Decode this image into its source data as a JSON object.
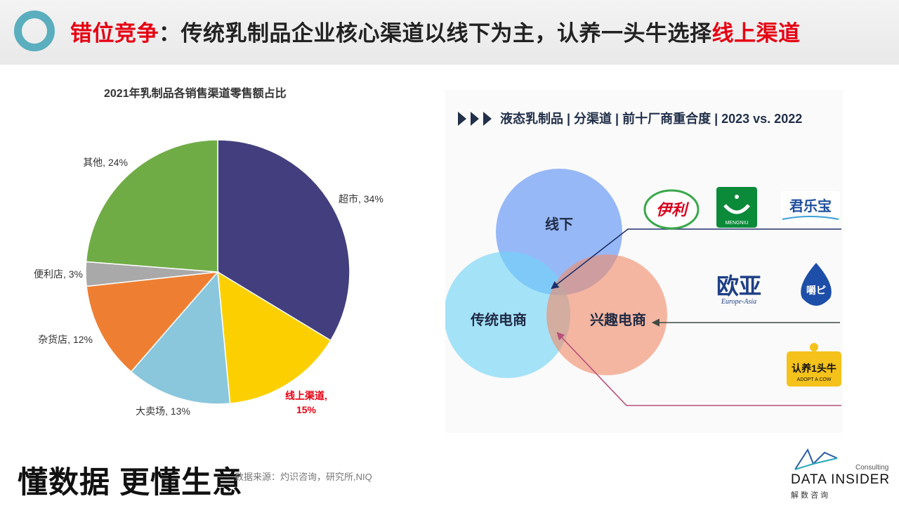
{
  "header": {
    "title_prefix": "错位竞争",
    "title_colon": "：",
    "title_main": "传统乳制品企业核心渠道以线下为主，认养一头牛选择",
    "title_highlight": "线上渠道"
  },
  "chart_data": [
    {
      "type": "pie",
      "title": "2021年乳制品各销售渠道零售额占比",
      "slices": [
        {
          "label": "超市",
          "value": 34,
          "display": "超市, 34%",
          "color": "#433f7e"
        },
        {
          "label": "线上渠道",
          "value": 15,
          "display_line1": "线上渠道,",
          "display_line2": "15%",
          "color": "#fcd000",
          "highlight": true,
          "label_color": "#e60012"
        },
        {
          "label": "大卖场",
          "value": 13,
          "display": "大卖场, 13%",
          "color": "#8ac7dc"
        },
        {
          "label": "杂货店",
          "value": 12,
          "display": "杂货店, 12%",
          "color": "#ee7f32"
        },
        {
          "label": "便利店",
          "value": 3,
          "display": "便利店, 3%",
          "color": "#a9a9a9"
        },
        {
          "label": "其他",
          "value": 24,
          "display": "其他, 24%",
          "color": "#70ac46"
        }
      ]
    }
  ],
  "venn": {
    "heading": "液态乳制品 | 分渠道 | 前十厂商重合度 | 2023 vs. 2022",
    "circles": [
      {
        "label": "线下",
        "color": "#5a8ff5"
      },
      {
        "label": "传统电商",
        "color": "#6fd3f7"
      },
      {
        "label": "兴趣电商",
        "color": "#f18c6b"
      }
    ],
    "logos": [
      {
        "text": "伊利",
        "color": "#d6001c"
      },
      {
        "text": "MENGNIU",
        "color": "#0b8a3a"
      },
      {
        "text": "君乐宝",
        "color": "#1f4f9c"
      },
      {
        "text": "欧亚",
        "color": "#1f3f86",
        "sub": "Europe-Asia"
      },
      {
        "text": "嚼ピ",
        "color": "#1d4ea8"
      },
      {
        "text": "认养1头牛",
        "sub": "ADOPT A COW",
        "color": "#f4c21a"
      }
    ]
  },
  "footer": {
    "slogan": "懂数据 更懂生意",
    "source": "数据来源：灼识咨询，研究所,NIQ",
    "brand_consulting": "Consulting",
    "brand_name": "DATA INSIDER",
    "brand_sub": "解数咨询"
  }
}
